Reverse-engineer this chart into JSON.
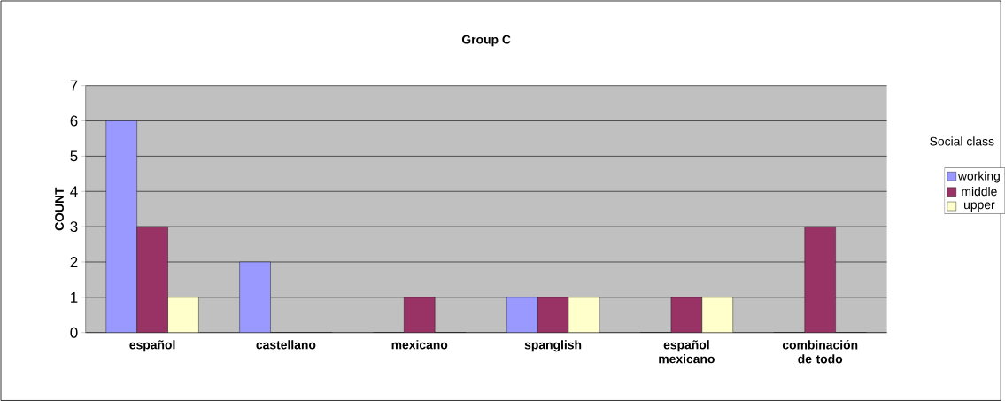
{
  "chart_data": {
    "type": "bar",
    "title": "Group C",
    "ylabel": "COUNT",
    "legend_title": "Social class",
    "categories": [
      "español",
      "castellano",
      "mexicano",
      "spanglish",
      "español mexicano",
      "combinación de todo"
    ],
    "series": [
      {
        "name": "working",
        "color": "#9999ff",
        "values": [
          6,
          2,
          0,
          1,
          0,
          0
        ]
      },
      {
        "name": "middle",
        "color": "#993366",
        "values": [
          3,
          0,
          1,
          1,
          1,
          3
        ]
      },
      {
        "name": "upper",
        "color": "#ffffcc",
        "values": [
          1,
          0,
          0,
          1,
          1,
          0
        ]
      }
    ],
    "ylim": [
      0,
      7
    ],
    "yticks": [
      0,
      1,
      2,
      3,
      4,
      5,
      6,
      7
    ],
    "grid": "y",
    "legend": "right"
  }
}
